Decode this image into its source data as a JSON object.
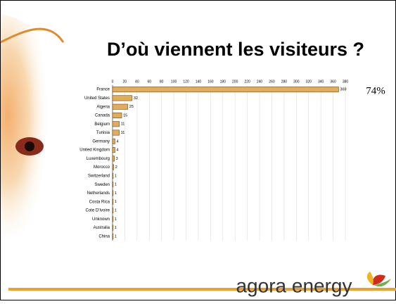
{
  "chart_data": {
    "type": "bar",
    "orientation": "horizontal",
    "title": "D’où viennent les visiteurs ?",
    "categories": [
      "France",
      "United States",
      "Algeria",
      "Canada",
      "Belgium",
      "Tunisia",
      "Germany",
      "United Kingdom",
      "Luxembourg",
      "Morocco",
      "Switzerland",
      "Sweden",
      "Netherlands",
      "Costa Rica",
      "Cote D'Ivoire",
      "Unknown",
      "Australia",
      "China"
    ],
    "values": [
      369,
      32,
      25,
      15,
      11,
      11,
      4,
      4,
      3,
      2,
      1,
      1,
      1,
      1,
      1,
      1,
      1,
      1
    ],
    "color": "#e3ac5c",
    "xlim": [
      0,
      380
    ],
    "xticks": [
      0,
      20,
      40,
      60,
      80,
      100,
      120,
      140,
      160,
      180,
      200,
      220,
      240,
      260,
      280,
      300,
      320,
      340,
      360,
      380
    ],
    "grid": true,
    "annotation": "74%"
  },
  "logo": "agora energy"
}
